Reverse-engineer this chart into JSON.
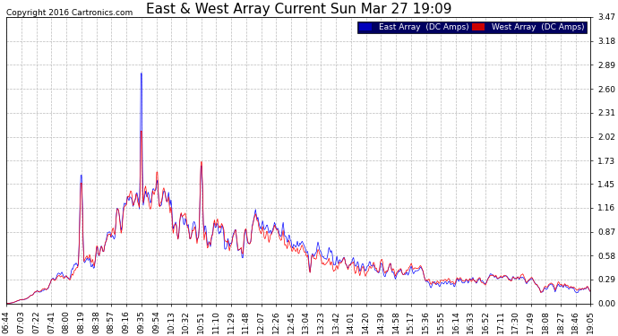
{
  "title": "East & West Array Current Sun Mar 27 19:09",
  "copyright": "Copyright 2016 Cartronics.com",
  "legend_east": "East Array  (DC Amps)",
  "legend_west": "West Array  (DC Amps)",
  "east_color": "#0000ff",
  "west_color": "#ff0000",
  "legend_east_bg": "#0000bb",
  "legend_west_bg": "#cc0000",
  "ylim": [
    0.0,
    3.47
  ],
  "yticks": [
    0.0,
    0.29,
    0.58,
    0.87,
    1.16,
    1.45,
    1.73,
    2.02,
    2.31,
    2.6,
    2.89,
    3.18,
    3.47
  ],
  "background_color": "#ffffff",
  "grid_color": "#aaaaaa",
  "title_fontsize": 11,
  "tick_fontsize": 6.5,
  "copyright_fontsize": 6.5,
  "time_labels": [
    "06:44",
    "07:03",
    "07:22",
    "07:41",
    "08:00",
    "08:19",
    "08:38",
    "08:57",
    "09:16",
    "09:35",
    "09:54",
    "10:13",
    "10:32",
    "10:51",
    "11:10",
    "11:29",
    "11:48",
    "12:07",
    "12:26",
    "12:45",
    "13:04",
    "13:23",
    "13:42",
    "14:01",
    "14:20",
    "14:39",
    "14:58",
    "15:17",
    "15:36",
    "15:55",
    "16:14",
    "16:33",
    "16:52",
    "17:11",
    "17:30",
    "17:49",
    "18:08",
    "18:27",
    "18:46",
    "19:05"
  ]
}
